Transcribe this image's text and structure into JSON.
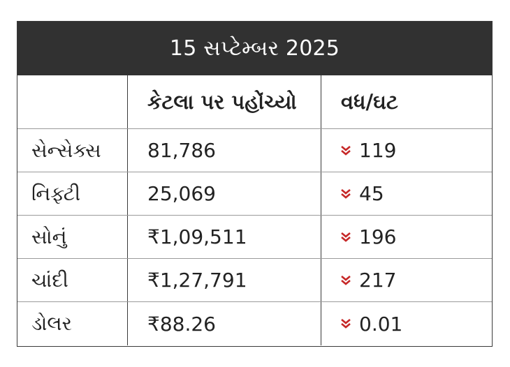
{
  "title": "15 સપ્ટેમ્બર 2025",
  "columns": [
    "",
    "કેટલા પર પહોંચ્યો",
    "વધ/ઘટ"
  ],
  "rows": [
    {
      "name": "સેન્સેક્સ",
      "value": "81,786",
      "change": "119",
      "direction": "down"
    },
    {
      "name": "નિફ્ટી",
      "value": "25,069",
      "change": "45",
      "direction": "down"
    },
    {
      "name": "સોનું",
      "value": "₹1,09,511",
      "change": "196",
      "direction": "down"
    },
    {
      "name": "ચાંદી",
      "value": "₹1,27,791",
      "change": "217",
      "direction": "down"
    },
    {
      "name": "ડોલર",
      "value": "₹88.26",
      "change": "0.01",
      "direction": "down"
    }
  ],
  "colors": {
    "header_bg": "#313131",
    "down_icon": "#c62828",
    "border": "#3a3a3a"
  },
  "icons": {
    "down": "double-chevron-down-icon"
  }
}
